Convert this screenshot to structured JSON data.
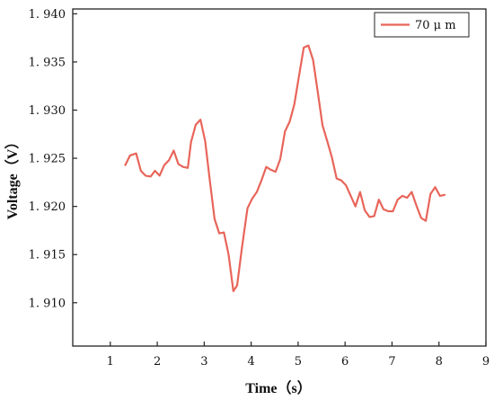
{
  "chart_data": {
    "type": "line",
    "xlabel": "Time（s）",
    "ylabel": "Voltage（V）",
    "xlim": [
      0.2,
      9.0
    ],
    "ylim": [
      1.9055,
      1.9405
    ],
    "x_ticks": [
      1,
      2,
      3,
      4,
      5,
      6,
      7,
      8,
      9
    ],
    "x_tick_labels": [
      "1",
      "2",
      "3",
      "4",
      "5",
      "6",
      "7",
      "8",
      "9"
    ],
    "y_ticks": [
      1.91,
      1.915,
      1.92,
      1.925,
      1.93,
      1.935,
      1.94
    ],
    "y_tick_labels": [
      "1. 910",
      "1. 915",
      "1. 920",
      "1. 925",
      "1. 930",
      "1. 935",
      "1. 940"
    ],
    "legend_position": "top-right",
    "series": [
      {
        "name": "70 μ m",
        "color": "#e8655a",
        "x": [
          1.32,
          1.42,
          1.55,
          1.65,
          1.75,
          1.86,
          1.95,
          2.05,
          2.15,
          2.25,
          2.35,
          2.45,
          2.55,
          2.65,
          2.72,
          2.82,
          2.92,
          3.02,
          3.12,
          3.22,
          3.32,
          3.42,
          3.52,
          3.62,
          3.7,
          3.8,
          3.92,
          4.02,
          4.12,
          4.22,
          4.32,
          4.42,
          4.52,
          4.62,
          4.72,
          4.82,
          4.92,
          5.02,
          5.12,
          5.22,
          5.32,
          5.42,
          5.52,
          5.62,
          5.72,
          5.82,
          5.92,
          6.02,
          6.12,
          6.22,
          6.32,
          6.42,
          6.52,
          6.62,
          6.72,
          6.82,
          6.92,
          7.02,
          7.12,
          7.22,
          7.32,
          7.42,
          7.52,
          7.62,
          7.72,
          7.82,
          7.92,
          8.02,
          8.12
        ],
        "y": [
          1.9243,
          1.9253,
          1.9255,
          1.9237,
          1.9232,
          1.9231,
          1.9237,
          1.9232,
          1.9243,
          1.9248,
          1.9258,
          1.9244,
          1.9241,
          1.924,
          1.9267,
          1.9285,
          1.929,
          1.9268,
          1.9227,
          1.9187,
          1.9172,
          1.9173,
          1.915,
          1.9112,
          1.9118,
          1.9156,
          1.9198,
          1.9208,
          1.9215,
          1.9227,
          1.9241,
          1.9238,
          1.9236,
          1.9249,
          1.9278,
          1.9288,
          1.9306,
          1.9336,
          1.9365,
          1.9367,
          1.9352,
          1.9318,
          1.9284,
          1.9268,
          1.9251,
          1.9229,
          1.9227,
          1.9222,
          1.9211,
          1.92,
          1.9215,
          1.9196,
          1.9189,
          1.919,
          1.9207,
          1.9197,
          1.9195,
          1.9195,
          1.9207,
          1.9211,
          1.9209,
          1.9215,
          1.9201,
          1.9188,
          1.9185,
          1.9213,
          1.922,
          1.9211,
          1.9212
        ]
      }
    ]
  }
}
